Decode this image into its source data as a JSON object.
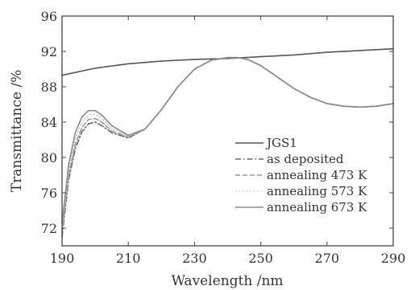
{
  "chart_data": {
    "type": "line",
    "title": "",
    "xlabel": "Wavelength /nm",
    "ylabel": "Transmittance /%",
    "xlim": [
      190,
      290
    ],
    "ylim": [
      70,
      96
    ],
    "xticks": [
      "190",
      "210",
      "230",
      "250",
      "270",
      "290"
    ],
    "yticks": [
      "72",
      "76",
      "80",
      "84",
      "88",
      "92",
      "96"
    ],
    "grid": false,
    "legend_position": "right",
    "series": [
      {
        "name": "JGS1",
        "color": "#555555",
        "dash": "solid",
        "x": [
          190,
          200,
          210,
          220,
          230,
          240,
          250,
          260,
          270,
          280,
          290
        ],
        "y": [
          89.3,
          90.1,
          90.6,
          90.9,
          91.1,
          91.2,
          91.4,
          91.6,
          91.9,
          92.1,
          92.3
        ]
      },
      {
        "name": "as deposited",
        "color": "#666666",
        "dash": "dashdot",
        "x": [
          190,
          192,
          194,
          196,
          198,
          200,
          202,
          205,
          210,
          215,
          220,
          225,
          230,
          235,
          240,
          243,
          246,
          250,
          255,
          260,
          265,
          270,
          275,
          280,
          285,
          290
        ],
        "y": [
          71.0,
          77.5,
          81.0,
          82.9,
          83.8,
          84.0,
          83.6,
          82.8,
          82.2,
          83.2,
          85.4,
          88.0,
          90.0,
          91.0,
          91.3,
          91.3,
          91.1,
          90.4,
          89.1,
          87.8,
          86.8,
          86.1,
          85.8,
          85.7,
          85.8,
          86.1
        ]
      },
      {
        "name": "annealing 473 K",
        "color": "#999999",
        "dash": "dashed",
        "x": [
          190,
          192,
          194,
          196,
          198,
          200,
          202,
          205,
          210,
          215,
          220,
          225,
          230,
          235,
          240,
          243,
          246,
          250,
          255,
          260,
          265,
          270,
          275,
          280,
          285,
          290
        ],
        "y": [
          71.5,
          78.0,
          81.5,
          83.4,
          84.3,
          84.4,
          84.0,
          83.0,
          82.3,
          83.2,
          85.4,
          88.0,
          90.0,
          91.0,
          91.3,
          91.3,
          91.1,
          90.4,
          89.1,
          87.8,
          86.8,
          86.1,
          85.8,
          85.7,
          85.8,
          86.1
        ]
      },
      {
        "name": "annealing 573 K",
        "color": "#cfcfcf",
        "dash": "dotted",
        "x": [
          190,
          192,
          194,
          196,
          198,
          200,
          202,
          205,
          210,
          215,
          220,
          225,
          230,
          235,
          240,
          243,
          246,
          250,
          255,
          260,
          265,
          270,
          275,
          280,
          285,
          290
        ],
        "y": [
          72.0,
          78.6,
          82.2,
          84.0,
          84.8,
          84.9,
          84.4,
          83.3,
          82.4,
          83.2,
          85.4,
          88.0,
          90.0,
          91.0,
          91.3,
          91.3,
          91.1,
          90.4,
          89.1,
          87.8,
          86.8,
          86.1,
          85.8,
          85.7,
          85.8,
          86.1
        ]
      },
      {
        "name": "annealing 673 K",
        "color": "#8a8a8a",
        "dash": "solid",
        "x": [
          190,
          192,
          194,
          196,
          198,
          200,
          202,
          205,
          210,
          215,
          220,
          225,
          230,
          235,
          240,
          243,
          246,
          250,
          255,
          260,
          265,
          270,
          275,
          280,
          285,
          290
        ],
        "y": [
          72.5,
          79.2,
          82.8,
          84.6,
          85.3,
          85.3,
          84.8,
          83.6,
          82.5,
          83.2,
          85.4,
          88.0,
          90.0,
          91.0,
          91.3,
          91.3,
          91.1,
          90.4,
          89.1,
          87.8,
          86.8,
          86.1,
          85.8,
          85.7,
          85.8,
          86.1
        ]
      }
    ]
  }
}
